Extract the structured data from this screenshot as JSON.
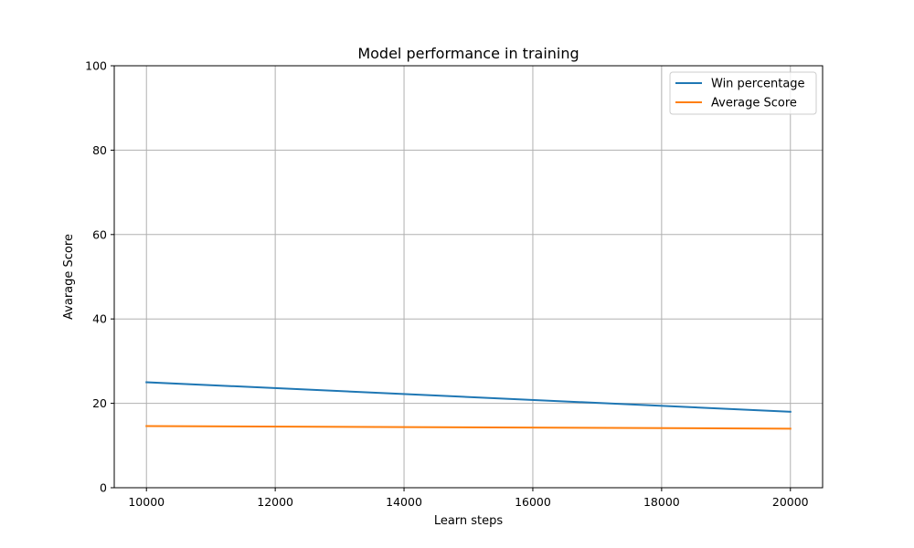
{
  "chart_data": {
    "type": "line",
    "title": "Model performance in training",
    "xlabel": "Learn steps",
    "ylabel": "Avarage Score",
    "xlim": [
      9500,
      20500
    ],
    "ylim": [
      0,
      100
    ],
    "x_ticks": [
      10000,
      12000,
      14000,
      16000,
      18000,
      20000
    ],
    "y_ticks": [
      0,
      20,
      40,
      60,
      80,
      100
    ],
    "grid": true,
    "legend_position": "top-right",
    "x": [
      10000,
      20000
    ],
    "series": [
      {
        "name": "Win percentage",
        "color": "#1f77b4",
        "values": [
          25.0,
          18.0
        ]
      },
      {
        "name": "Average Score",
        "color": "#ff7f0e",
        "values": [
          14.6,
          14.0
        ]
      }
    ]
  }
}
